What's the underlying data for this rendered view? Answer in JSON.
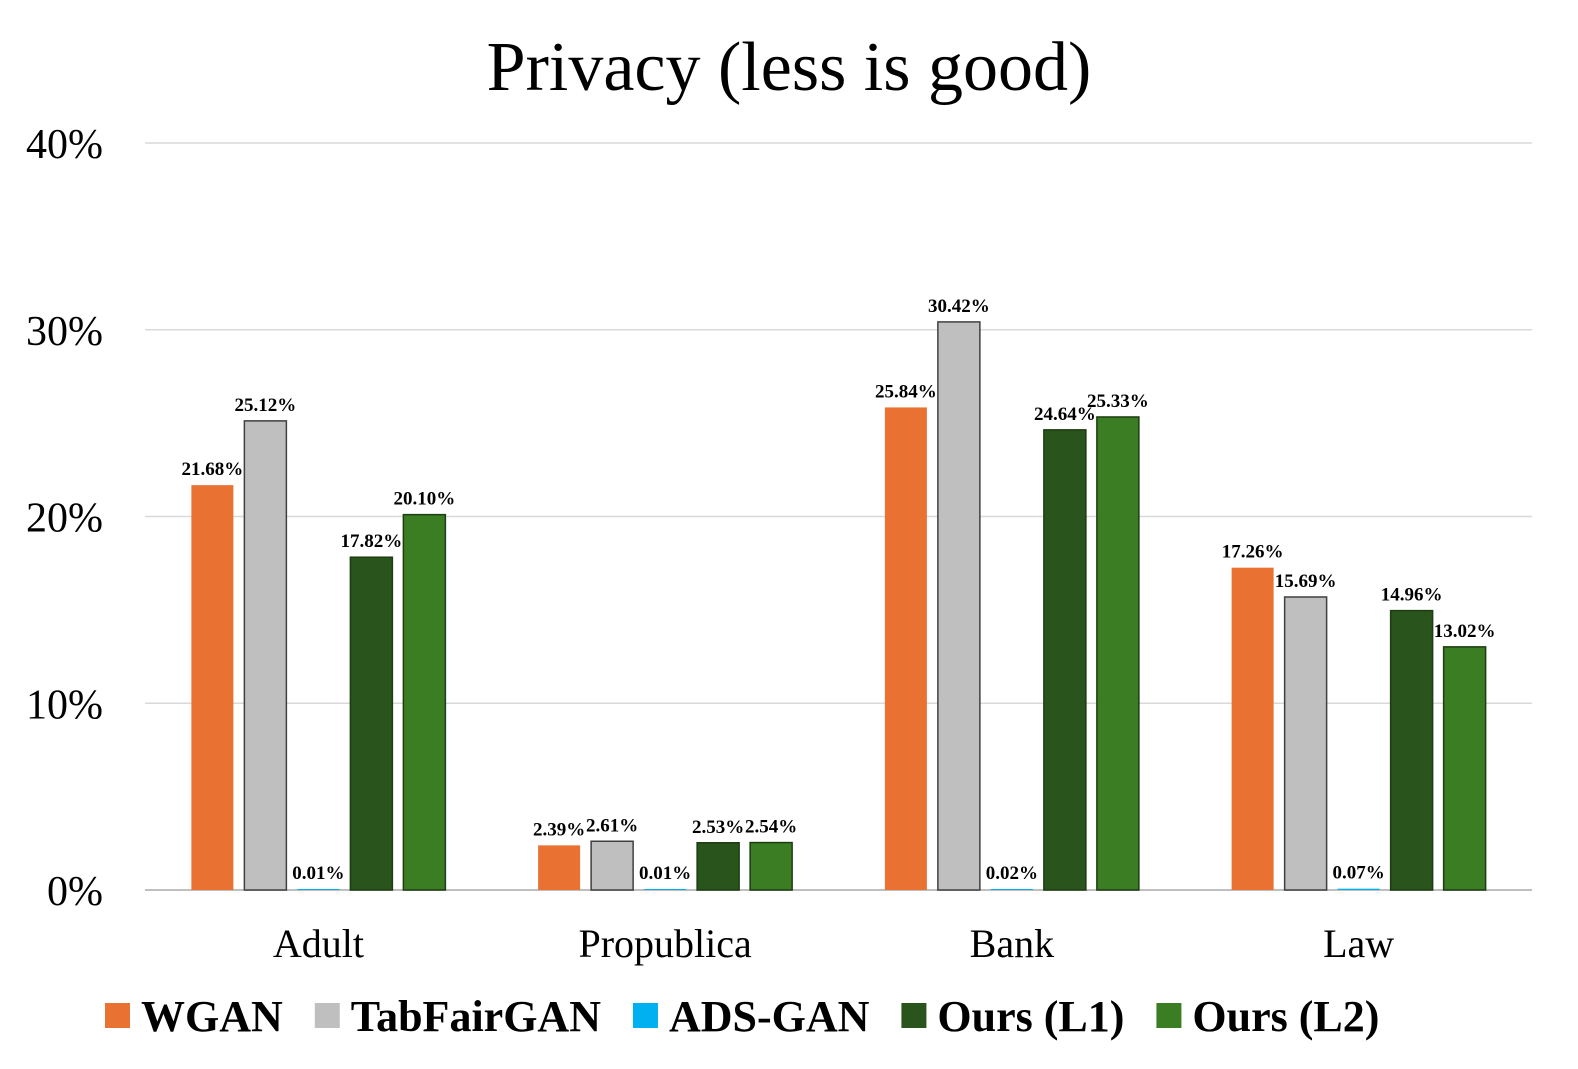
{
  "chart_data": {
    "type": "bar",
    "title": "Privacy (less is good)",
    "categories": [
      "Adult",
      "Propublica",
      "Bank",
      "Law"
    ],
    "series": [
      {
        "name": "WGAN",
        "color": "#e97132",
        "values": [
          21.68,
          2.39,
          25.84,
          17.26
        ],
        "labels": [
          "21.68%",
          "2.39%",
          "25.84%",
          "17.26%"
        ]
      },
      {
        "name": "TabFairGAN",
        "color": "#bfbfbf",
        "values": [
          25.12,
          2.61,
          30.42,
          15.69
        ],
        "labels": [
          "25.12%",
          "2.61%",
          "30.42%",
          "15.69%"
        ]
      },
      {
        "name": "ADS-GAN",
        "color": "#00b0f0",
        "values": [
          0.01,
          0.01,
          0.02,
          0.07
        ],
        "labels": [
          "0.01%",
          "0.01%",
          "0.02%",
          "0.07%"
        ]
      },
      {
        "name": "Ours (L1)",
        "color": "#29541b",
        "values": [
          17.82,
          2.53,
          24.64,
          14.96
        ],
        "labels": [
          "17.82%",
          "2.53%",
          "24.64%",
          "14.96%"
        ]
      },
      {
        "name": "Ours (L2)",
        "color": "#3a7d22",
        "values": [
          20.1,
          2.54,
          25.33,
          13.02
        ],
        "labels": [
          "20.10%",
          "2.54%",
          "25.33%",
          "13.02%"
        ]
      }
    ],
    "ylim": [
      0,
      40
    ],
    "yticks": [
      "0%",
      "10%",
      "20%",
      "30%",
      "40%"
    ],
    "grid": true,
    "legend_position": "bottom"
  }
}
